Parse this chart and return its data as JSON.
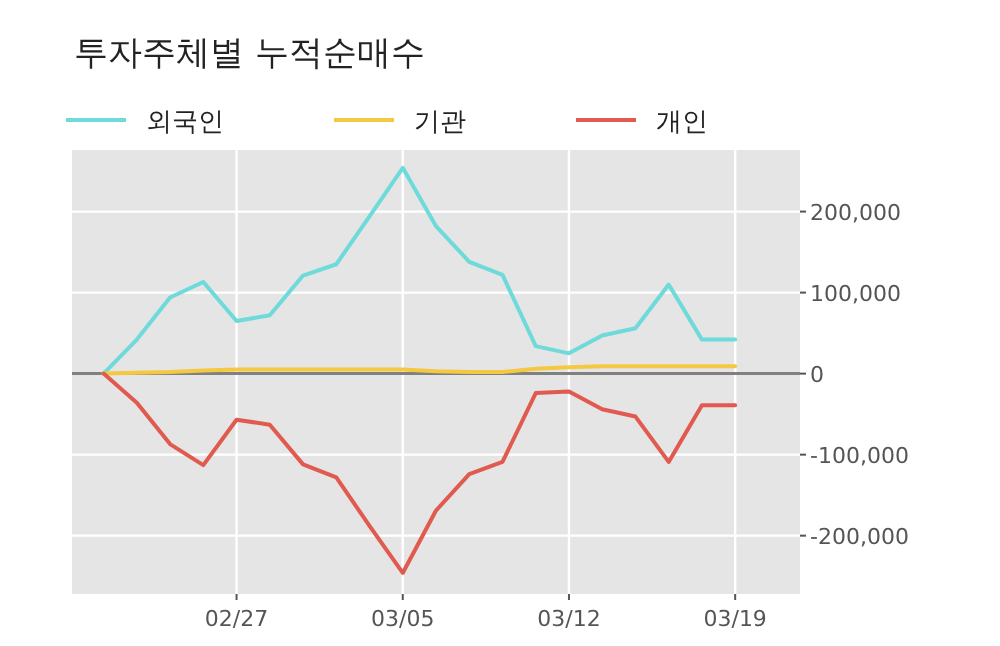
{
  "chart_data": {
    "type": "line",
    "title": "투자주체별 누적순매수",
    "categories": [
      null,
      null,
      null,
      null,
      "02/27",
      null,
      null,
      null,
      null,
      "03/05",
      null,
      null,
      null,
      null,
      "03/12",
      null,
      null,
      null,
      null,
      "03/19"
    ],
    "series": [
      {
        "name": "외국인",
        "color": "#6fdada",
        "values": [
          0,
          42000,
          94000,
          113000,
          65000,
          72000,
          121000,
          135000,
          194000,
          254000,
          182000,
          138000,
          122000,
          34000,
          25000,
          47000,
          56000,
          110000,
          42000,
          42000
        ]
      },
      {
        "name": "기관",
        "color": "#f5c842",
        "values": [
          0,
          1000,
          2000,
          4000,
          5000,
          5000,
          5000,
          5000,
          5000,
          5000,
          3000,
          2000,
          2000,
          6000,
          8000,
          9000,
          9000,
          9000,
          9000,
          9000
        ]
      },
      {
        "name": "개인",
        "color": "#e05a4f",
        "values": [
          0,
          -36000,
          -87000,
          -113000,
          -57000,
          -63000,
          -112000,
          -128000,
          -188000,
          -246000,
          -169000,
          -124000,
          -109000,
          -24000,
          -22000,
          -44000,
          -53000,
          -109000,
          -39000,
          -39000
        ]
      }
    ],
    "ylim": [
      -272000,
      276000
    ],
    "yticks": [
      {
        "value": -200000,
        "label": "-200,000"
      },
      {
        "value": -100000,
        "label": "-100,000"
      },
      {
        "value": 0,
        "label": "0"
      },
      {
        "value": 100000,
        "label": "100,000"
      },
      {
        "value": 200000,
        "label": "200,000"
      }
    ],
    "ref_lines": [
      {
        "axis": "y",
        "value": 0,
        "color": "#808080"
      }
    ],
    "grid": true,
    "legend": "top left"
  }
}
